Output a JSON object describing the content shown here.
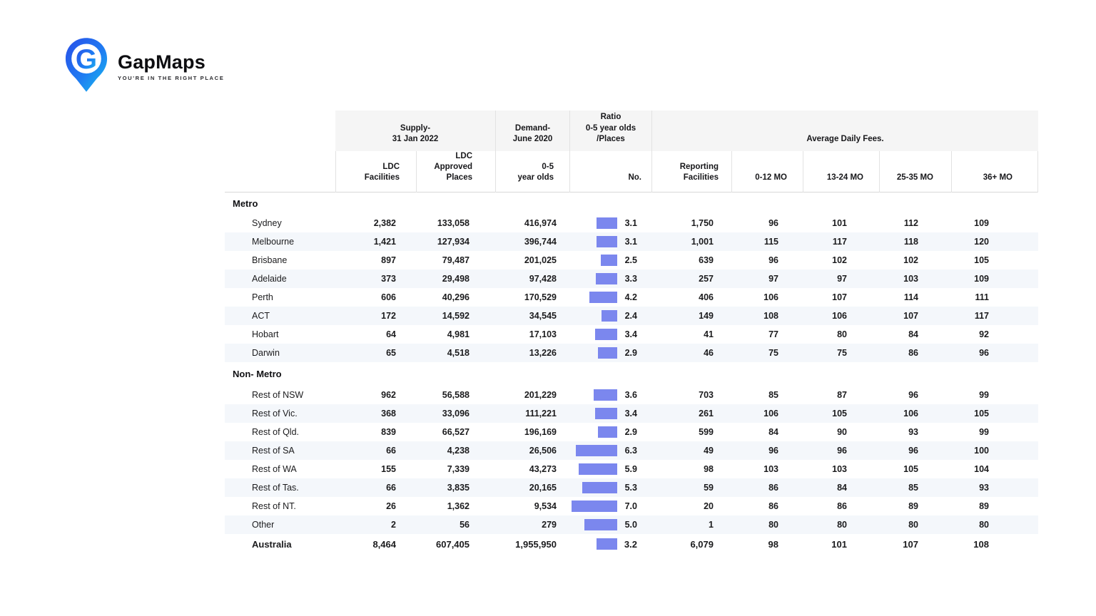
{
  "logo": {
    "name": "GapMaps",
    "tagline": "YOU'RE IN THE RIGHT PLACE"
  },
  "colors": {
    "bar": "#7b87ee",
    "stripe": "#f4f7fb",
    "header_bg": "#f5f5f5",
    "line": "#e2e2e2",
    "logo_blue_dark": "#2a4fe8",
    "logo_blue_light": "#18c0ee"
  },
  "chart_data": {
    "type": "table",
    "group_headers": [
      "Supply-\n31 Jan 2022",
      "Demand-\nJune 2020",
      "Ratio\n0-5 year olds\n/Places",
      "Average Daily Fees."
    ],
    "columns": [
      "LDC\nFacilities",
      "LDC\nApproved\nPlaces",
      "0-5\nyear olds",
      "No.",
      "Reporting\nFacilities",
      "0-12 MO",
      "13-24 MO",
      "25-35 MO",
      "36+ MO"
    ],
    "bar_column": "No.",
    "bar_axis_note": "in-cell horizontal bars proportional to ratio value",
    "sections": [
      {
        "label": "Metro",
        "rows": [
          {
            "name": "Sydney",
            "ldc_facilities": "2,382",
            "ldc_approved_places": "133,058",
            "demand_0_5": "416,974",
            "ratio": 3.1,
            "reporting_facilities": "1,750",
            "fee_0_12_mo": "96",
            "fee_13_24_mo": "101",
            "fee_25_35_mo": "112",
            "fee_36_mo": "109"
          },
          {
            "name": "Melbourne",
            "ldc_facilities": "1,421",
            "ldc_approved_places": "127,934",
            "demand_0_5": "396,744",
            "ratio": 3.1,
            "reporting_facilities": "1,001",
            "fee_0_12_mo": "115",
            "fee_13_24_mo": "117",
            "fee_25_35_mo": "118",
            "fee_36_mo": "120"
          },
          {
            "name": "Brisbane",
            "ldc_facilities": "897",
            "ldc_approved_places": "79,487",
            "demand_0_5": "201,025",
            "ratio": 2.5,
            "reporting_facilities": "639",
            "fee_0_12_mo": "96",
            "fee_13_24_mo": "102",
            "fee_25_35_mo": "102",
            "fee_36_mo": "105"
          },
          {
            "name": "Adelaide",
            "ldc_facilities": "373",
            "ldc_approved_places": "29,498",
            "demand_0_5": "97,428",
            "ratio": 3.3,
            "reporting_facilities": "257",
            "fee_0_12_mo": "97",
            "fee_13_24_mo": "97",
            "fee_25_35_mo": "103",
            "fee_36_mo": "109"
          },
          {
            "name": "Perth",
            "ldc_facilities": "606",
            "ldc_approved_places": "40,296",
            "demand_0_5": "170,529",
            "ratio": 4.2,
            "reporting_facilities": "406",
            "fee_0_12_mo": "106",
            "fee_13_24_mo": "107",
            "fee_25_35_mo": "114",
            "fee_36_mo": "111"
          },
          {
            "name": "ACT",
            "ldc_facilities": "172",
            "ldc_approved_places": "14,592",
            "demand_0_5": "34,545",
            "ratio": 2.4,
            "reporting_facilities": "149",
            "fee_0_12_mo": "108",
            "fee_13_24_mo": "106",
            "fee_25_35_mo": "107",
            "fee_36_mo": "117"
          },
          {
            "name": "Hobart",
            "ldc_facilities": "64",
            "ldc_approved_places": "4,981",
            "demand_0_5": "17,103",
            "ratio": 3.4,
            "reporting_facilities": "41",
            "fee_0_12_mo": "77",
            "fee_13_24_mo": "80",
            "fee_25_35_mo": "84",
            "fee_36_mo": "92"
          },
          {
            "name": "Darwin",
            "ldc_facilities": "65",
            "ldc_approved_places": "4,518",
            "demand_0_5": "13,226",
            "ratio": 2.9,
            "reporting_facilities": "46",
            "fee_0_12_mo": "75",
            "fee_13_24_mo": "75",
            "fee_25_35_mo": "86",
            "fee_36_mo": "96"
          }
        ]
      },
      {
        "label": "Non- Metro",
        "rows": [
          {
            "name": "Rest of NSW",
            "ldc_facilities": "962",
            "ldc_approved_places": "56,588",
            "demand_0_5": "201,229",
            "ratio": 3.6,
            "reporting_facilities": "703",
            "fee_0_12_mo": "85",
            "fee_13_24_mo": "87",
            "fee_25_35_mo": "96",
            "fee_36_mo": "99"
          },
          {
            "name": "Rest of Vic.",
            "ldc_facilities": "368",
            "ldc_approved_places": "33,096",
            "demand_0_5": "111,221",
            "ratio": 3.4,
            "reporting_facilities": "261",
            "fee_0_12_mo": "106",
            "fee_13_24_mo": "105",
            "fee_25_35_mo": "106",
            "fee_36_mo": "105"
          },
          {
            "name": "Rest of Qld.",
            "ldc_facilities": "839",
            "ldc_approved_places": "66,527",
            "demand_0_5": "196,169",
            "ratio": 2.9,
            "reporting_facilities": "599",
            "fee_0_12_mo": "84",
            "fee_13_24_mo": "90",
            "fee_25_35_mo": "93",
            "fee_36_mo": "99"
          },
          {
            "name": "Rest of SA",
            "ldc_facilities": "66",
            "ldc_approved_places": "4,238",
            "demand_0_5": "26,506",
            "ratio": 6.3,
            "reporting_facilities": "49",
            "fee_0_12_mo": "96",
            "fee_13_24_mo": "96",
            "fee_25_35_mo": "96",
            "fee_36_mo": "100"
          },
          {
            "name": "Rest of WA",
            "ldc_facilities": "155",
            "ldc_approved_places": "7,339",
            "demand_0_5": "43,273",
            "ratio": 5.9,
            "reporting_facilities": "98",
            "fee_0_12_mo": "103",
            "fee_13_24_mo": "103",
            "fee_25_35_mo": "105",
            "fee_36_mo": "104"
          },
          {
            "name": "Rest of Tas.",
            "ldc_facilities": "66",
            "ldc_approved_places": "3,835",
            "demand_0_5": "20,165",
            "ratio": 5.3,
            "reporting_facilities": "59",
            "fee_0_12_mo": "86",
            "fee_13_24_mo": "84",
            "fee_25_35_mo": "85",
            "fee_36_mo": "93"
          },
          {
            "name": "Rest of NT.",
            "ldc_facilities": "26",
            "ldc_approved_places": "1,362",
            "demand_0_5": "9,534",
            "ratio": 7.0,
            "reporting_facilities": "20",
            "fee_0_12_mo": "86",
            "fee_13_24_mo": "86",
            "fee_25_35_mo": "89",
            "fee_36_mo": "89"
          },
          {
            "name": "Other",
            "ldc_facilities": "2",
            "ldc_approved_places": "56",
            "demand_0_5": "279",
            "ratio": 5.0,
            "reporting_facilities": "1",
            "fee_0_12_mo": "80",
            "fee_13_24_mo": "80",
            "fee_25_35_mo": "80",
            "fee_36_mo": "80"
          }
        ]
      }
    ],
    "total": {
      "name": "Australia",
      "ldc_facilities": "8,464",
      "ldc_approved_places": "607,405",
      "demand_0_5": "1,955,950",
      "ratio": 3.2,
      "reporting_facilities": "6,079",
      "fee_0_12_mo": "98",
      "fee_13_24_mo": "101",
      "fee_25_35_mo": "107",
      "fee_36_mo": "108"
    }
  }
}
